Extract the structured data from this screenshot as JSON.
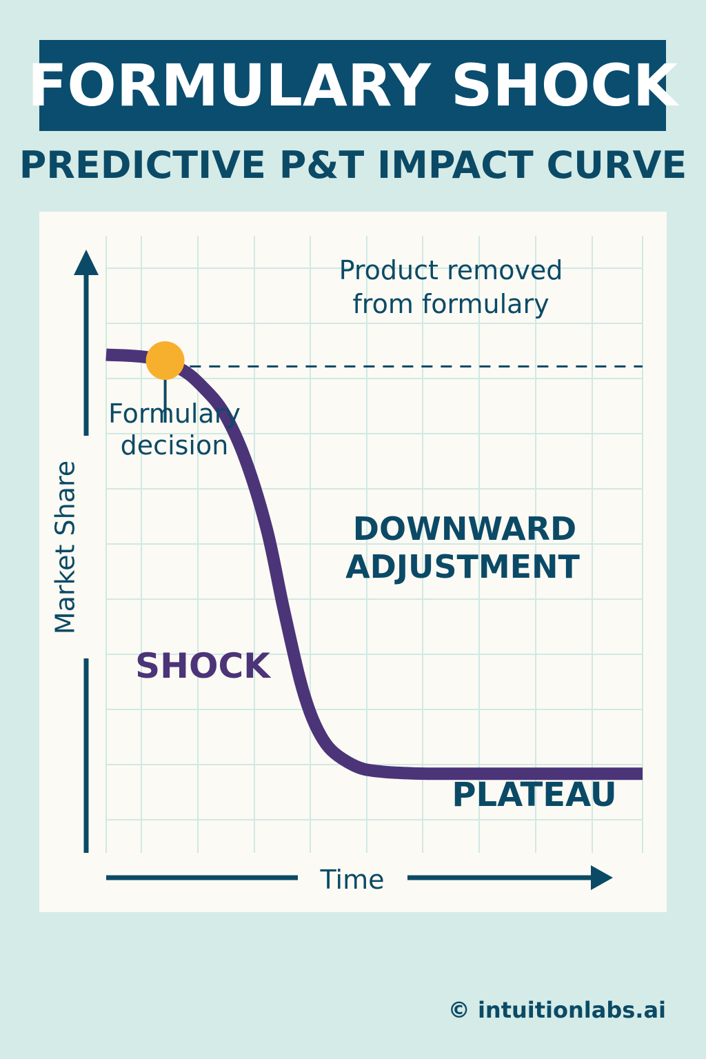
{
  "title": "FORMULARY SHOCK",
  "subtitle": "PREDICTIVE P&T IMPACT CURVE",
  "footer": "© intuitionlabs.ai",
  "colors": {
    "banner": "#0a4d6e",
    "text": "#0b4a66",
    "curve": "#4b3478",
    "marker": "#f7b02e",
    "grid": "#cfe9e4"
  },
  "chart_data": {
    "type": "line",
    "title": "FORMULARY SHOCK",
    "subtitle": "PREDICTIVE P&T IMPACT CURVE",
    "xlabel": "Time",
    "ylabel": "Market Share",
    "xlim": [
      0,
      100
    ],
    "ylim": [
      0,
      100
    ],
    "grid": true,
    "series": [
      {
        "name": "Market share",
        "x": [
          0,
          8,
          14,
          18,
          22,
          26,
          30,
          33,
          36,
          38,
          40,
          42,
          45,
          48,
          52,
          56,
          60,
          70,
          80,
          90,
          100
        ],
        "y": [
          85,
          84.5,
          82.5,
          79.5,
          75,
          67,
          55,
          42,
          30,
          24,
          20,
          17.5,
          15.5,
          14.3,
          13.8,
          13.6,
          13.5,
          13.5,
          13.5,
          13.5,
          13.5
        ]
      }
    ],
    "reference_line": {
      "y": 83,
      "x_start": 12,
      "x_end": 100,
      "style": "dashed"
    },
    "marker": {
      "x": 11,
      "y": 84
    },
    "annotations": {
      "product_removed_line1": "Product removed",
      "product_removed_line2": "from formulary",
      "formulary_decision_line1": "Formulary",
      "formulary_decision_line2": "decision",
      "downward_line1": "DOWNWARD",
      "downward_line2": "ADJUSTMENT",
      "shock": "SHOCK",
      "plateau": "PLATEAU"
    }
  }
}
